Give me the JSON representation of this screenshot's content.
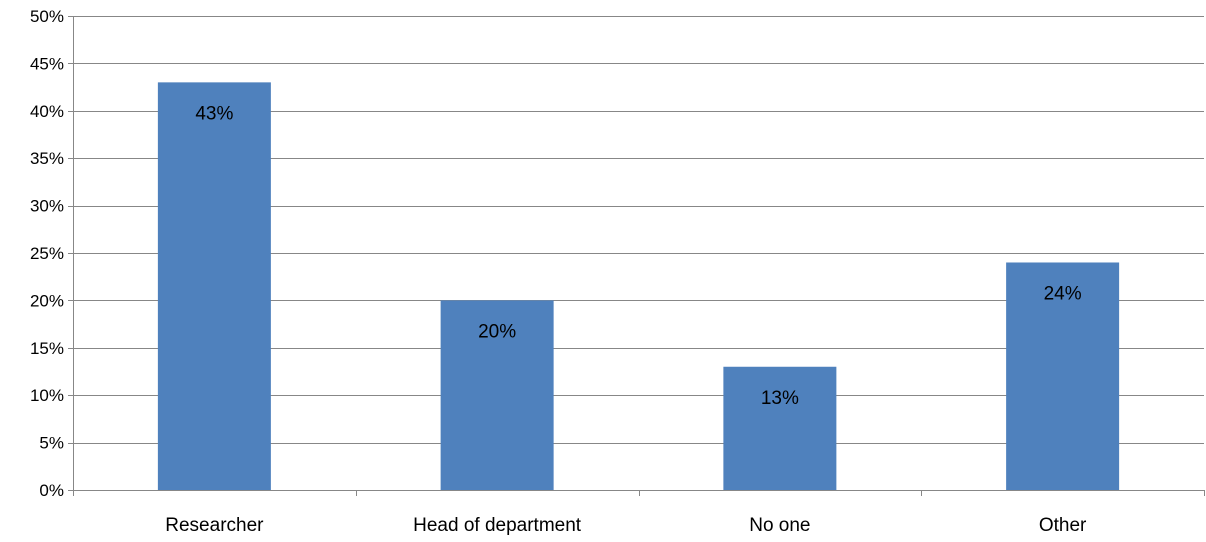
{
  "chart_data": {
    "type": "bar",
    "title": "",
    "xlabel": "",
    "ylabel": "",
    "categories": [
      "Researcher",
      "Head of department",
      "No one",
      "Other"
    ],
    "values": [
      43,
      20,
      13,
      24
    ],
    "data_labels": [
      "43%",
      "20%",
      "13%",
      "24%"
    ],
    "ylim": [
      0,
      50
    ],
    "y_ticks": [
      0,
      5,
      10,
      15,
      20,
      25,
      30,
      35,
      40,
      45,
      50
    ],
    "y_tick_labels": [
      "0%",
      "5%",
      "10%",
      "15%",
      "20%",
      "25%",
      "30%",
      "35%",
      "40%",
      "45%",
      "50%"
    ],
    "grid": true,
    "legend": "none",
    "colors": {
      "bar": "#4F81BD",
      "grid": "#878787",
      "axis": "#878787",
      "text": "#000000"
    }
  }
}
